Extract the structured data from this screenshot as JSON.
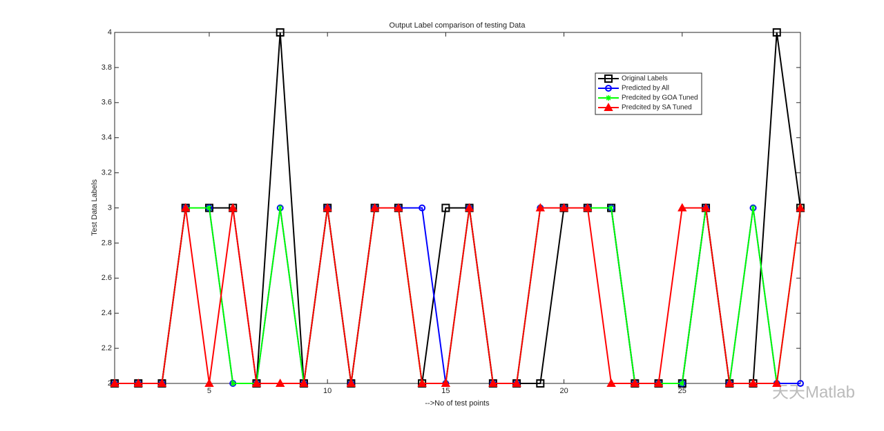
{
  "chart_data": {
    "type": "line",
    "title": "Output Label comparison of testing Data",
    "x_label": "-->No of test points",
    "y_label": "Test Data Labels",
    "x": [
      1,
      2,
      3,
      4,
      5,
      6,
      7,
      8,
      9,
      10,
      11,
      12,
      13,
      14,
      15,
      16,
      17,
      18,
      19,
      20,
      21,
      22,
      23,
      24,
      25,
      26,
      27,
      28,
      29,
      30
    ],
    "xlim": [
      1,
      30
    ],
    "xticks": [
      5,
      10,
      15,
      20,
      25
    ],
    "ylim": [
      2,
      4
    ],
    "yticks": [
      2,
      2.2,
      2.4,
      2.6,
      2.8,
      3,
      3.2,
      3.4,
      3.6,
      3.8,
      4
    ],
    "legend": "upper right",
    "series": [
      {
        "name": "Original Labels",
        "color": "#000000",
        "marker": "square",
        "values": [
          2,
          2,
          2,
          3,
          3,
          3,
          2,
          4,
          2,
          3,
          2,
          3,
          3,
          2,
          3,
          3,
          2,
          2,
          2,
          3,
          3,
          3,
          2,
          2,
          2,
          3,
          2,
          2,
          4,
          3
        ]
      },
      {
        "name": "Predicted by All",
        "color": "#0000ff",
        "marker": "circle",
        "values": [
          2,
          2,
          2,
          3,
          3,
          2,
          2,
          3,
          2,
          3,
          2,
          3,
          3,
          3,
          2,
          3,
          2,
          2,
          3,
          3,
          3,
          3,
          2,
          2,
          2,
          3,
          2,
          3,
          2,
          2
        ]
      },
      {
        "name": "Predcited by GOA Tuned",
        "color": "#00ff00",
        "marker": "x",
        "values": [
          2,
          2,
          2,
          3,
          3,
          2,
          2,
          3,
          2,
          3,
          2,
          3,
          3,
          2,
          2,
          3,
          2,
          2,
          3,
          3,
          3,
          3,
          2,
          2,
          2,
          3,
          2,
          3,
          2,
          3
        ]
      },
      {
        "name": "Predcited by SA Tuned",
        "color": "#ff0000",
        "marker": "triangle",
        "values": [
          2,
          2,
          2,
          3,
          2,
          3,
          2,
          2,
          2,
          3,
          2,
          3,
          3,
          2,
          2,
          3,
          2,
          2,
          3,
          3,
          3,
          2,
          2,
          2,
          3,
          3,
          2,
          2,
          2,
          3
        ]
      }
    ],
    "watermark": "天天Matlab"
  }
}
